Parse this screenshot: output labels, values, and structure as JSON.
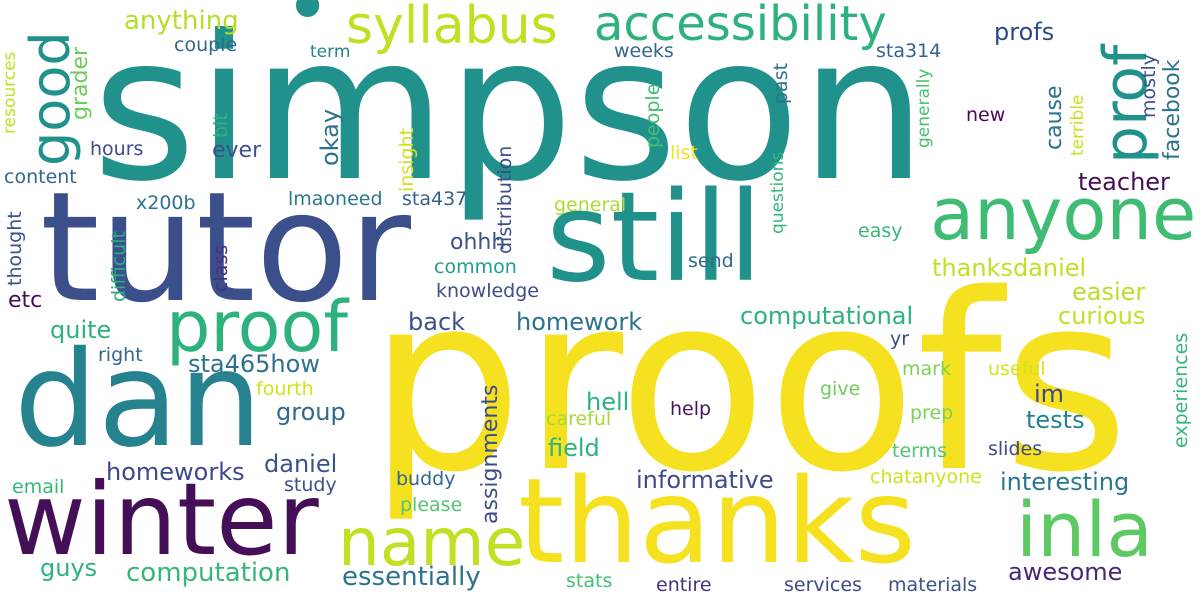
{
  "words": [
    {
      "text": "simpson",
      "color": "#21918c"
    },
    {
      "text": "proofs",
      "color": "#f5e11f"
    },
    {
      "text": "tutor",
      "color": "#3b4f8a"
    },
    {
      "text": "dan",
      "color": "#26828e"
    },
    {
      "text": "still",
      "color": "#21918c"
    },
    {
      "text": "thanks",
      "color": "#f5e11f"
    },
    {
      "text": "winter",
      "color": "#440f56"
    },
    {
      "text": "anyone",
      "color": "#3fbc73"
    },
    {
      "text": "proof",
      "color": "#2db27d"
    },
    {
      "text": "name",
      "color": "#c2df23"
    },
    {
      "text": "inla",
      "color": "#5ec962"
    },
    {
      "text": "syllabus",
      "color": "#c2df23"
    },
    {
      "text": "accessibility",
      "color": "#2db27d"
    },
    {
      "text": "prof",
      "color": "#21918c"
    },
    {
      "text": "good",
      "color": "#21918c"
    },
    {
      "text": "anything",
      "color": "#b5de2b"
    },
    {
      "text": "profs",
      "color": "#2c4a8a"
    },
    {
      "text": "couple",
      "color": "#31688e"
    },
    {
      "text": "term",
      "color": "#26828e"
    },
    {
      "text": "weeks",
      "color": "#31688e"
    },
    {
      "text": "sta314",
      "color": "#35618d"
    },
    {
      "text": "grader",
      "color": "#6ccd5a"
    },
    {
      "text": "resources",
      "color": "#c2df23"
    },
    {
      "text": "bit",
      "color": "#2db27d"
    },
    {
      "text": "okay",
      "color": "#2c728e"
    },
    {
      "text": "ever",
      "color": "#3b528b"
    },
    {
      "text": "hours",
      "color": "#3e4989"
    },
    {
      "text": "content",
      "color": "#31688e"
    },
    {
      "text": "x200b",
      "color": "#2c738e"
    },
    {
      "text": "insight",
      "color": "#d2e21b"
    },
    {
      "text": "lmaoneed",
      "color": "#2a788e"
    },
    {
      "text": "sta437",
      "color": "#35608d"
    },
    {
      "text": "distribution",
      "color": "#3e4c8a"
    },
    {
      "text": "past",
      "color": "#2c728e"
    },
    {
      "text": "people",
      "color": "#44bf70"
    },
    {
      "text": "list",
      "color": "#f5e11f"
    },
    {
      "text": "questions",
      "color": "#34b679"
    },
    {
      "text": "general",
      "color": "#addc30"
    },
    {
      "text": "generally",
      "color": "#4ac16d"
    },
    {
      "text": "new",
      "color": "#46085c"
    },
    {
      "text": "cause",
      "color": "#2c728e"
    },
    {
      "text": "terrible",
      "color": "#c8e020"
    },
    {
      "text": "mostly",
      "color": "#3b528b"
    },
    {
      "text": "facebook",
      "color": "#2c728e"
    },
    {
      "text": "teacher",
      "color": "#440f56"
    },
    {
      "text": "thought",
      "color": "#3b528b"
    },
    {
      "text": "difficult",
      "color": "#28ae80"
    },
    {
      "text": "class",
      "color": "#472d7b"
    },
    {
      "text": "ohhh",
      "color": "#3b528b"
    },
    {
      "text": "common",
      "color": "#1f9e89"
    },
    {
      "text": "knowledge",
      "color": "#3e4c8a"
    },
    {
      "text": "easy",
      "color": "#35b779"
    },
    {
      "text": "send",
      "color": "#31688e"
    },
    {
      "text": "thanksdaniel",
      "color": "#c2df23"
    },
    {
      "text": "easier",
      "color": "#b8de29"
    },
    {
      "text": "etc",
      "color": "#440f56"
    },
    {
      "text": "quite",
      "color": "#2db27d"
    },
    {
      "text": "right",
      "color": "#31688e"
    },
    {
      "text": "back",
      "color": "#3b528b"
    },
    {
      "text": "homework",
      "color": "#2c728e"
    },
    {
      "text": "computational",
      "color": "#2db27d"
    },
    {
      "text": "curious",
      "color": "#c2df23"
    },
    {
      "text": "yr",
      "color": "#3e4989"
    },
    {
      "text": "sta465how",
      "color": "#2c728e"
    },
    {
      "text": "fourth",
      "color": "#d2e21b"
    },
    {
      "text": "group",
      "color": "#31688e"
    },
    {
      "text": "assignments",
      "color": "#3e4c8a"
    },
    {
      "text": "hell",
      "color": "#2db27d"
    },
    {
      "text": "im",
      "color": "#3e4989"
    },
    {
      "text": "tests",
      "color": "#26828e"
    },
    {
      "text": "careful",
      "color": "#a5db36"
    },
    {
      "text": "give",
      "color": "#6ccd5a"
    },
    {
      "text": "help",
      "color": "#471365"
    },
    {
      "text": "mark",
      "color": "#7ad151"
    },
    {
      "text": "useful",
      "color": "#d8e219"
    },
    {
      "text": "prep",
      "color": "#7ad151"
    },
    {
      "text": "experiences",
      "color": "#35b779"
    },
    {
      "text": "field",
      "color": "#2db27d"
    },
    {
      "text": "daniel",
      "color": "#3b528b"
    },
    {
      "text": "homeworks",
      "color": "#3e4989"
    },
    {
      "text": "terms",
      "color": "#52c569"
    },
    {
      "text": "slides",
      "color": "#3e4989"
    },
    {
      "text": "informative",
      "color": "#3e4c8a"
    },
    {
      "text": "interesting",
      "color": "#2a788e"
    },
    {
      "text": "email",
      "color": "#35b779"
    },
    {
      "text": "study",
      "color": "#3b528b"
    },
    {
      "text": "buddy",
      "color": "#31688e"
    },
    {
      "text": "please",
      "color": "#52c569"
    },
    {
      "text": "chatanyone",
      "color": "#d0e11c"
    },
    {
      "text": "guys",
      "color": "#2db27d"
    },
    {
      "text": "computation",
      "color": "#35b779"
    },
    {
      "text": "essentially",
      "color": "#2c728e"
    },
    {
      "text": "awesome",
      "color": "#482878"
    },
    {
      "text": "stats",
      "color": "#44bf70"
    },
    {
      "text": "entire",
      "color": "#46337e"
    },
    {
      "text": "services",
      "color": "#3e4989"
    },
    {
      "text": "materials",
      "color": "#3b528b"
    }
  ]
}
